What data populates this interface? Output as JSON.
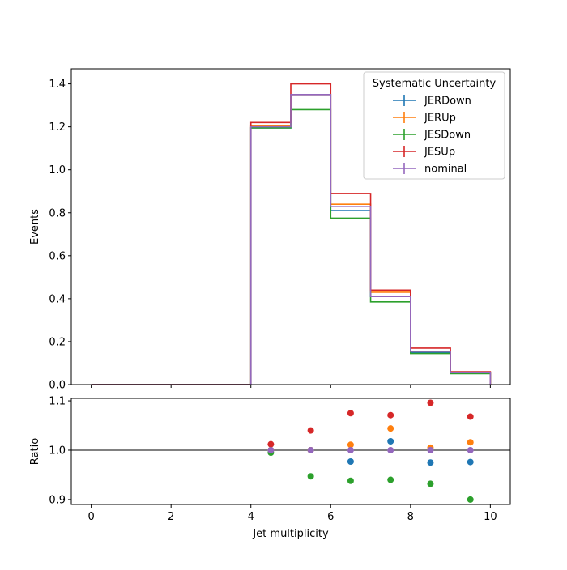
{
  "chart_data": {
    "type": "step-histogram-with-ratio",
    "xlabel": "Jet multiplicity",
    "main": {
      "ylabel": "Events",
      "ylim": [
        0,
        1.47
      ],
      "yticks": [
        "0.0",
        "0.2",
        "0.4",
        "0.6",
        "0.8",
        "1.0",
        "1.2",
        "1.4"
      ],
      "bin_edges": [
        0,
        1,
        2,
        3,
        4,
        5,
        6,
        7,
        8,
        9,
        10
      ],
      "series": [
        {
          "name": "JERDown",
          "color": "#1f77b4",
          "values": [
            0,
            0,
            0,
            0,
            1.195,
            1.35,
            0.81,
            0.41,
            0.15,
            0.055
          ]
        },
        {
          "name": "JERUp",
          "color": "#ff7f0e",
          "values": [
            0,
            0,
            0,
            0,
            1.205,
            1.35,
            0.84,
            0.43,
            0.155,
            0.057
          ]
        },
        {
          "name": "JESDown",
          "color": "#2ca02c",
          "values": [
            0,
            0,
            0,
            0,
            1.195,
            1.28,
            0.775,
            0.385,
            0.145,
            0.051
          ]
        },
        {
          "name": "JESUp",
          "color": "#d62728",
          "values": [
            0,
            0,
            0,
            0,
            1.22,
            1.4,
            0.89,
            0.44,
            0.17,
            0.06
          ]
        },
        {
          "name": "nominal",
          "color": "#9467bd",
          "values": [
            0,
            0,
            0,
            0,
            1.2,
            1.35,
            0.83,
            0.41,
            0.155,
            0.056
          ]
        }
      ],
      "legend": {
        "title": "Systematic Uncertainty",
        "position": "upper right"
      }
    },
    "ratio": {
      "ylabel": "Ratio",
      "ylim": [
        0.89,
        1.105
      ],
      "yticks": [
        "0.9",
        "1.0",
        "1.1"
      ],
      "reference_line": 1.0,
      "x": [
        4.5,
        5.5,
        6.5,
        7.5,
        8.5,
        9.5
      ],
      "series": [
        {
          "name": "JERDown",
          "color": "#1f77b4",
          "values": [
            1.0,
            1.0,
            0.977,
            1.018,
            0.975,
            0.976
          ]
        },
        {
          "name": "JERUp",
          "color": "#ff7f0e",
          "values": [
            1.0,
            1.0,
            1.011,
            1.044,
            1.005,
            1.016
          ]
        },
        {
          "name": "JESDown",
          "color": "#2ca02c",
          "values": [
            0.995,
            0.947,
            0.938,
            0.94,
            0.932,
            0.9
          ]
        },
        {
          "name": "JESUp",
          "color": "#d62728",
          "values": [
            1.012,
            1.04,
            1.075,
            1.071,
            1.096,
            1.068
          ]
        },
        {
          "name": "nominal",
          "color": "#9467bd",
          "values": [
            1.0,
            1.0,
            1.0,
            1.0,
            1.0,
            1.0
          ]
        }
      ]
    },
    "xlim": [
      -0.5,
      10.5
    ],
    "xticks": [
      "0",
      "2",
      "4",
      "6",
      "8",
      "10"
    ]
  }
}
